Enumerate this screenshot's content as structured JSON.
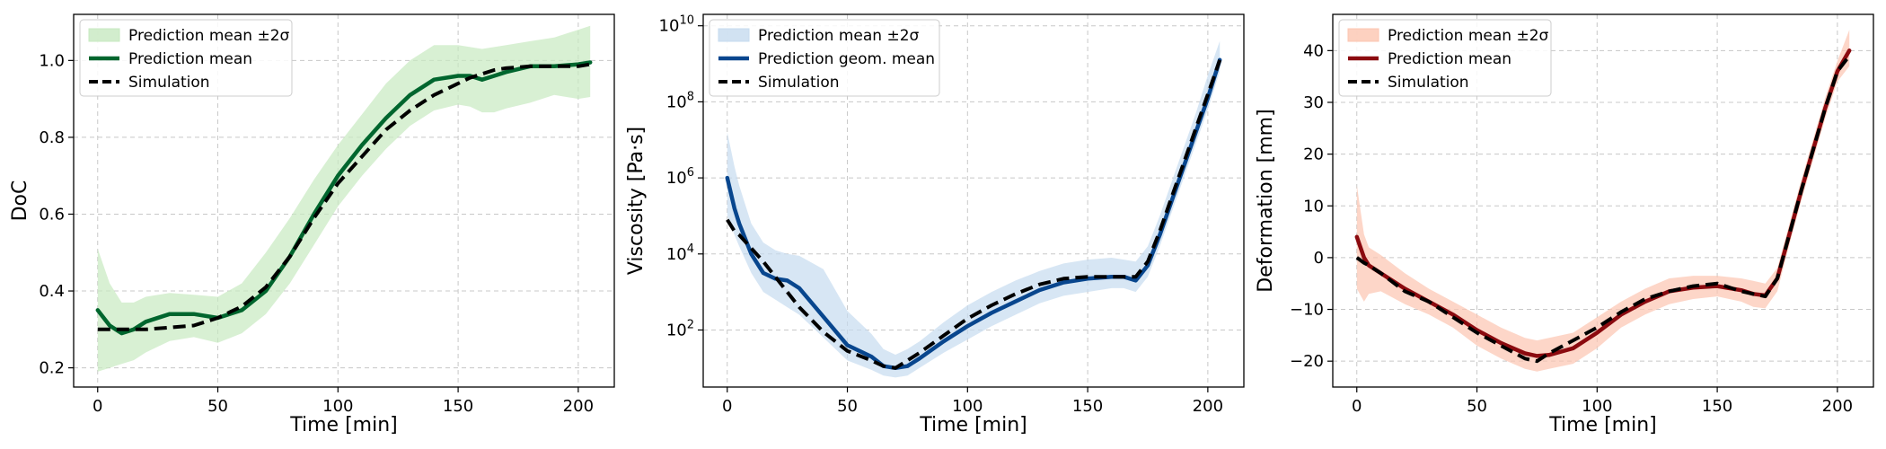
{
  "chart_data": [
    {
      "type": "line",
      "xlabel": "Time [min]",
      "ylabel": "DoC",
      "yscale": "linear",
      "xlim": [
        -10,
        215
      ],
      "ylim": [
        0.15,
        1.12
      ],
      "xticks": [
        0,
        50,
        100,
        150,
        200
      ],
      "yticks": [
        0.2,
        0.4,
        0.6,
        0.8,
        1.0
      ],
      "ytick_labels": [
        "0.2",
        "0.4",
        "0.6",
        "0.8",
        "1.0"
      ],
      "colors": {
        "band": "#c7e9c0",
        "mean": "#00662e",
        "sim": "#000000"
      },
      "legend": {
        "position": "top-left",
        "entries": [
          "Prediction mean ±2σ",
          "Prediction mean",
          "Simulation"
        ]
      },
      "x": [
        0,
        5,
        10,
        15,
        20,
        30,
        40,
        50,
        60,
        70,
        80,
        90,
        100,
        110,
        120,
        130,
        140,
        150,
        155,
        160,
        165,
        170,
        180,
        190,
        200,
        205
      ],
      "series": [
        {
          "name": "Prediction mean",
          "values": [
            0.35,
            0.31,
            0.29,
            0.3,
            0.32,
            0.34,
            0.34,
            0.33,
            0.35,
            0.4,
            0.49,
            0.6,
            0.7,
            0.78,
            0.85,
            0.91,
            0.95,
            0.96,
            0.96,
            0.95,
            0.96,
            0.97,
            0.985,
            0.985,
            0.99,
            0.995
          ]
        },
        {
          "name": "Prediction mean +2σ",
          "values": [
            0.51,
            0.42,
            0.37,
            0.37,
            0.385,
            0.395,
            0.39,
            0.385,
            0.42,
            0.5,
            0.59,
            0.69,
            0.78,
            0.86,
            0.94,
            1.0,
            1.04,
            1.04,
            1.035,
            1.03,
            1.035,
            1.04,
            1.05,
            1.06,
            1.08,
            1.09
          ]
        },
        {
          "name": "Prediction mean -2σ",
          "values": [
            0.19,
            0.2,
            0.21,
            0.22,
            0.24,
            0.27,
            0.28,
            0.265,
            0.29,
            0.34,
            0.42,
            0.52,
            0.62,
            0.7,
            0.77,
            0.83,
            0.87,
            0.885,
            0.88,
            0.865,
            0.865,
            0.875,
            0.89,
            0.91,
            0.9,
            0.905
          ]
        },
        {
          "name": "Simulation",
          "values": [
            0.3,
            0.3,
            0.3,
            0.3,
            0.3,
            0.305,
            0.31,
            0.33,
            0.36,
            0.41,
            0.49,
            0.59,
            0.68,
            0.75,
            0.82,
            0.87,
            0.91,
            0.94,
            0.955,
            0.965,
            0.975,
            0.98,
            0.985,
            0.985,
            0.985,
            0.99
          ]
        }
      ]
    },
    {
      "type": "line",
      "xlabel": "Time [min]",
      "ylabel": "Viscosity [Pa·s]",
      "yscale": "log10",
      "xlim": [
        -10,
        215
      ],
      "ylim": [
        0.5,
        10.3
      ],
      "xticks": [
        0,
        50,
        100,
        150,
        200
      ],
      "yticks": [
        2,
        4,
        6,
        8,
        10
      ],
      "ytick_labels": [
        "10^2",
        "10^4",
        "10^6",
        "10^8",
        "10^10"
      ],
      "colors": {
        "band": "#c6dbef",
        "mean": "#08468e",
        "sim": "#000000"
      },
      "legend": {
        "position": "top-left",
        "entries": [
          "Prediction mean ±2σ",
          "Prediction geom. mean",
          "Simulation"
        ]
      },
      "x": [
        0,
        3,
        5,
        10,
        15,
        20,
        25,
        30,
        40,
        50,
        60,
        65,
        70,
        75,
        80,
        90,
        100,
        110,
        120,
        130,
        140,
        150,
        160,
        165,
        170,
        175,
        180,
        185,
        190,
        195,
        200,
        205
      ],
      "series": [
        {
          "name": "Prediction geom. mean (log10)",
          "values": [
            6.0,
            5.2,
            4.8,
            4.0,
            3.5,
            3.35,
            3.3,
            3.1,
            2.35,
            1.6,
            1.3,
            1.05,
            1.0,
            1.05,
            1.25,
            1.7,
            2.1,
            2.45,
            2.75,
            3.05,
            3.25,
            3.35,
            3.4,
            3.4,
            3.3,
            3.7,
            4.5,
            5.4,
            6.3,
            7.2,
            8.1,
            9.1
          ]
        },
        {
          "name": "Prediction mean +2σ (log10)",
          "values": [
            7.2,
            6.3,
            5.8,
            4.8,
            4.3,
            4.1,
            4.0,
            3.95,
            3.6,
            2.5,
            1.9,
            1.5,
            1.35,
            1.5,
            1.7,
            2.2,
            2.65,
            3.0,
            3.3,
            3.55,
            3.75,
            3.85,
            3.9,
            3.85,
            3.8,
            4.2,
            5.0,
            5.9,
            6.8,
            7.7,
            8.7,
            9.6
          ]
        },
        {
          "name": "Prediction mean -2σ (log10)",
          "values": [
            5.0,
            4.5,
            4.2,
            3.5,
            3.0,
            2.8,
            2.6,
            2.4,
            1.8,
            1.2,
            0.95,
            0.8,
            0.75,
            0.8,
            1.0,
            1.4,
            1.75,
            2.1,
            2.4,
            2.7,
            2.9,
            3.0,
            3.1,
            3.1,
            3.0,
            3.4,
            4.2,
            5.1,
            6.0,
            6.9,
            7.8,
            8.8
          ]
        },
        {
          "name": "Simulation (log10)",
          "values": [
            4.9,
            4.6,
            4.5,
            4.15,
            3.8,
            3.4,
            3.0,
            2.6,
            1.95,
            1.45,
            1.2,
            1.05,
            1.0,
            1.2,
            1.4,
            1.85,
            2.3,
            2.65,
            2.95,
            3.2,
            3.35,
            3.4,
            3.4,
            3.4,
            3.4,
            3.8,
            4.6,
            5.5,
            6.4,
            7.3,
            8.2,
            9.1
          ]
        }
      ]
    },
    {
      "type": "line",
      "xlabel": "Time [min]",
      "ylabel": "Deformation [mm]",
      "yscale": "linear",
      "xlim": [
        -10,
        215
      ],
      "ylim": [
        -25,
        47
      ],
      "xticks": [
        0,
        50,
        100,
        150,
        200
      ],
      "yticks": [
        -20,
        -10,
        0,
        10,
        20,
        30,
        40
      ],
      "ytick_labels": [
        "−20",
        "−10",
        "0",
        "10",
        "20",
        "30",
        "40"
      ],
      "colors": {
        "band": "#fcc5b0",
        "mean": "#8b0a0f",
        "sim": "#000000"
      },
      "legend": {
        "position": "top-left",
        "entries": [
          "Prediction mean ±2σ",
          "Prediction mean",
          "Simulation"
        ]
      },
      "x": [
        0,
        3,
        5,
        10,
        20,
        30,
        40,
        50,
        60,
        70,
        75,
        80,
        90,
        100,
        110,
        120,
        130,
        140,
        150,
        160,
        165,
        170,
        175,
        180,
        185,
        190,
        195,
        200,
        205
      ],
      "series": [
        {
          "name": "Prediction mean",
          "values": [
            4,
            0,
            -1.5,
            -3,
            -6,
            -8.5,
            -11,
            -14,
            -16.5,
            -18.5,
            -19,
            -18.8,
            -17.5,
            -14.5,
            -11,
            -8.5,
            -6.5,
            -5.8,
            -5.5,
            -6.3,
            -7,
            -7.3,
            -4,
            4.5,
            13,
            21,
            29,
            36,
            40
          ]
        },
        {
          "name": "Prediction mean +2σ",
          "values": [
            14,
            4.5,
            2,
            0.5,
            -3,
            -6,
            -8.5,
            -11,
            -13.5,
            -15.5,
            -16,
            -15.5,
            -14.5,
            -11.5,
            -8.5,
            -6,
            -4,
            -3.5,
            -3.5,
            -4,
            -4.5,
            -5,
            -2,
            6.5,
            15,
            23,
            31,
            38,
            44
          ]
        },
        {
          "name": "Prediction mean -2σ",
          "values": [
            -6,
            -8.5,
            -7,
            -6.5,
            -9,
            -11,
            -13.5,
            -17,
            -19.5,
            -21.5,
            -22,
            -21.5,
            -20.5,
            -17.5,
            -13.5,
            -11,
            -9,
            -8,
            -7.5,
            -8.5,
            -9.5,
            -9.8,
            -6.5,
            2.5,
            11,
            19,
            27,
            34,
            37
          ]
        },
        {
          "name": "Simulation",
          "values": [
            0,
            -1,
            -1.5,
            -3,
            -6.5,
            -8.5,
            -11.5,
            -14.5,
            -17,
            -19.5,
            -20,
            -18.5,
            -16,
            -13.5,
            -10.5,
            -8,
            -6.5,
            -5.5,
            -5,
            -6.5,
            -7,
            -7.5,
            -4,
            4.5,
            13,
            21,
            29,
            36,
            39
          ]
        }
      ]
    }
  ]
}
